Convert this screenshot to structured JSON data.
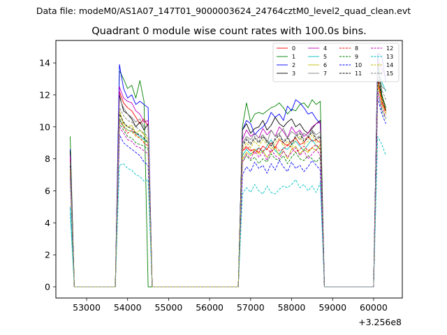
{
  "chart_data": {
    "type": "line",
    "suptitle": "Data file: modeM0/AS1A07_147T01_9000003624_24764cztM0_level2_quad_clean.evt",
    "title": "Quadrant 0 module wise count rates with 100.0s bins.",
    "xlabel": "",
    "ylabel": "",
    "x_offset_label": "+3.256e8",
    "xlim": [
      52250,
      60700
    ],
    "ylim": [
      -0.7,
      15.4
    ],
    "xticks": [
      53000,
      54000,
      55000,
      56000,
      57000,
      58000,
      59000,
      60000
    ],
    "yticks": [
      0,
      2,
      4,
      6,
      8,
      10,
      12,
      14
    ],
    "legend_position": "top-right",
    "legend_columns": 4,
    "segments": [
      {
        "start": 52600,
        "steps": 1
      },
      {
        "start": 53800,
        "steps": 8
      },
      {
        "start": 56800,
        "steps": 20
      },
      {
        "start": 60100,
        "steps": 2
      }
    ],
    "gap_value": 0,
    "series": [
      {
        "name": "0",
        "color": "#ff0000",
        "style": "solid",
        "segments": [
          [
            8.0,
            0
          ],
          [
            12.2,
            11.5,
            11.2,
            11.0,
            10.6,
            10.2,
            10.5,
            10.0,
            0
          ],
          [
            8.5,
            8.7,
            8.5,
            8.6,
            8.4,
            8.8,
            8.6,
            9.0,
            8.7,
            9.2,
            9.0,
            8.8,
            9.1,
            9.3,
            8.9,
            9.0,
            9.4,
            9.1,
            9.2,
            9.0,
            0
          ],
          [
            13.2,
            11.5,
            11.0
          ]
        ]
      },
      {
        "name": "1",
        "color": "#008000",
        "style": "solid",
        "segments": [
          [
            9.4,
            0
          ],
          [
            13.5,
            13.0,
            12.4,
            12.6,
            11.8,
            12.9,
            11.6,
            0,
            0
          ],
          [
            10.0,
            11.5,
            10.3,
            10.8,
            10.9,
            10.8,
            11.0,
            11.2,
            11.3,
            11.5,
            11.2,
            10.8,
            11.1,
            11.0,
            11.4,
            11.5,
            11.2,
            11.7,
            11.4,
            11.6,
            0
          ],
          [
            14.5,
            12.0,
            11.2
          ]
        ]
      },
      {
        "name": "2",
        "color": "#0000ff",
        "style": "solid",
        "segments": [
          [
            8.6,
            0
          ],
          [
            13.9,
            12.4,
            11.8,
            12.0,
            11.4,
            11.6,
            11.4,
            11.2,
            0
          ],
          [
            9.8,
            10.4,
            10.2,
            9.5,
            9.8,
            10.0,
            10.3,
            10.9,
            10.6,
            10.8,
            10.4,
            11.3,
            11.0,
            11.7,
            11.5,
            11.2,
            10.8,
            10.9,
            10.5,
            10.2,
            0
          ],
          [
            14.6,
            14.4,
            12.8
          ]
        ]
      },
      {
        "name": "3",
        "color": "#000000",
        "style": "solid",
        "segments": [
          [
            8.5,
            0
          ],
          [
            12.0,
            11.0,
            10.8,
            10.5,
            10.0,
            10.3,
            9.8,
            10.2,
            0
          ],
          [
            9.8,
            10.2,
            9.6,
            9.9,
            10.0,
            10.4,
            9.8,
            10.1,
            10.6,
            10.2,
            10.0,
            10.3,
            10.5,
            10.0,
            10.2,
            9.8,
            9.6,
            9.9,
            10.2,
            10.4,
            0
          ],
          [
            13.9,
            11.8,
            11.0
          ]
        ]
      },
      {
        "name": "4",
        "color": "#bf00bf",
        "style": "solid",
        "segments": [
          [
            8.2,
            0
          ],
          [
            12.5,
            11.8,
            11.6,
            11.5,
            11.0,
            10.8,
            10.3,
            10.4,
            0
          ],
          [
            9.2,
            9.8,
            9.4,
            9.6,
            9.3,
            9.9,
            9.5,
            9.8,
            9.4,
            10.0,
            9.7,
            9.3,
            10.0,
            9.6,
            9.8,
            9.4,
            9.6,
            10.0,
            10.2,
            10.3,
            0
          ],
          [
            14.2,
            13.6,
            13.2
          ]
        ]
      },
      {
        "name": "5",
        "color": "#00bfbf",
        "style": "solid",
        "segments": [
          [
            5.0,
            0
          ],
          [
            10.5,
            10.0,
            9.8,
            9.7,
            9.6,
            9.4,
            9.2,
            9.0,
            0
          ],
          [
            8.2,
            8.6,
            8.3,
            8.5,
            8.7,
            8.4,
            8.8,
            9.2,
            8.5,
            8.3,
            8.7,
            8.6,
            8.9,
            9.1,
            8.8,
            8.5,
            8.9,
            9.2,
            8.8,
            8.6,
            0
          ],
          [
            13.6,
            12.8,
            12.2
          ]
        ]
      },
      {
        "name": "6",
        "color": "#bfbf00",
        "style": "solid",
        "segments": [
          [
            7.2,
            0
          ],
          [
            11.0,
            10.2,
            10.0,
            10.1,
            9.6,
            9.8,
            9.5,
            9.2,
            0
          ],
          [
            8.0,
            8.4,
            8.2,
            8.6,
            8.3,
            8.5,
            8.1,
            8.4,
            8.7,
            8.2,
            8.5,
            8.0,
            8.6,
            8.8,
            8.3,
            8.6,
            8.4,
            8.7,
            8.5,
            8.9,
            0
          ],
          [
            12.8,
            11.4,
            10.8
          ]
        ]
      },
      {
        "name": "7",
        "color": "#808080",
        "style": "solid",
        "segments": [
          [
            7.8,
            0
          ],
          [
            11.8,
            11.2,
            10.8,
            10.6,
            10.3,
            10.5,
            10.0,
            10.1,
            0
          ],
          [
            9.0,
            9.4,
            9.2,
            9.6,
            9.3,
            9.5,
            9.0,
            9.8,
            9.4,
            9.6,
            9.9,
            9.3,
            9.7,
            9.5,
            9.2,
            9.6,
            9.4,
            9.8,
            9.5,
            9.7,
            0
          ],
          [
            13.6,
            12.5,
            12.3
          ]
        ]
      },
      {
        "name": "8",
        "color": "#ff0000",
        "style": "dashed",
        "segments": [
          [
            7.4,
            0
          ],
          [
            10.4,
            10.0,
            9.6,
            9.8,
            9.5,
            9.3,
            9.0,
            8.8,
            0
          ],
          [
            8.5,
            8.8,
            8.6,
            8.3,
            8.7,
            8.5,
            8.6,
            8.4,
            8.8,
            8.5,
            8.6,
            8.9,
            8.7,
            8.4,
            8.6,
            8.8,
            8.5,
            8.7,
            8.9,
            8.6,
            0
          ],
          [
            12.6,
            11.6,
            10.9
          ]
        ]
      },
      {
        "name": "9",
        "color": "#008000",
        "style": "dashed",
        "segments": [
          [
            7.0,
            0
          ],
          [
            10.2,
            9.8,
            9.4,
            9.3,
            9.0,
            8.9,
            8.8,
            8.6,
            0
          ],
          [
            7.8,
            8.2,
            7.9,
            8.1,
            7.7,
            8.0,
            7.8,
            8.3,
            8.0,
            7.9,
            8.2,
            7.7,
            8.1,
            8.4,
            8.0,
            7.9,
            8.2,
            8.0,
            7.8,
            8.1,
            0
          ],
          [
            12.3,
            11.0,
            10.5
          ]
        ]
      },
      {
        "name": "10",
        "color": "#0000ff",
        "style": "dashed",
        "segments": [
          [
            6.8,
            0
          ],
          [
            9.5,
            9.0,
            8.8,
            8.6,
            8.4,
            8.2,
            7.8,
            7.6,
            0
          ],
          [
            7.0,
            7.5,
            7.2,
            7.8,
            7.4,
            7.6,
            7.1,
            7.7,
            7.3,
            7.9,
            7.5,
            7.2,
            7.8,
            7.4,
            7.6,
            7.2,
            7.5,
            7.9,
            7.6,
            7.3,
            0
          ],
          [
            11.8,
            10.8,
            10.2
          ]
        ]
      },
      {
        "name": "11",
        "color": "#000000",
        "style": "dashed",
        "segments": [
          [
            7.6,
            0
          ],
          [
            10.8,
            10.3,
            10.0,
            9.9,
            9.6,
            9.5,
            9.3,
            9.0,
            0
          ],
          [
            8.8,
            9.2,
            8.9,
            9.3,
            9.0,
            9.4,
            9.1,
            8.8,
            9.2,
            9.5,
            9.0,
            9.3,
            8.9,
            9.4,
            9.6,
            9.1,
            9.3,
            9.7,
            9.2,
            9.4,
            0
          ],
          [
            12.9,
            11.9,
            11.2
          ]
        ]
      },
      {
        "name": "12",
        "color": "#bf00bf",
        "style": "dashed",
        "segments": [
          [
            7.1,
            0
          ],
          [
            10.0,
            9.6,
            9.2,
            9.1,
            8.8,
            8.7,
            8.5,
            8.3,
            0
          ],
          [
            7.8,
            8.3,
            8.0,
            8.5,
            8.1,
            8.4,
            7.9,
            8.6,
            8.2,
            8.0,
            8.5,
            8.1,
            8.4,
            8.7,
            8.2,
            8.5,
            8.0,
            8.3,
            8.6,
            8.2,
            0
          ],
          [
            12.2,
            11.2,
            10.6
          ]
        ]
      },
      {
        "name": "13",
        "color": "#00bfbf",
        "style": "dashed",
        "segments": [
          [
            4.6,
            0
          ],
          [
            7.6,
            7.7,
            7.4,
            7.3,
            7.0,
            6.9,
            6.6,
            6.7,
            0
          ],
          [
            5.8,
            6.2,
            5.9,
            6.4,
            6.0,
            5.8,
            6.3,
            5.9,
            5.8,
            6.1,
            6.3,
            6.2,
            6.4,
            6.7,
            6.2,
            6.4,
            6.0,
            6.3,
            5.9,
            6.5,
            0
          ],
          [
            9.4,
            8.9,
            8.2
          ]
        ]
      },
      {
        "name": "14",
        "color": "#bfbf00",
        "style": "dashed",
        "segments": [
          [
            7.3,
            0
          ],
          [
            10.6,
            10.1,
            9.8,
            9.7,
            9.4,
            9.3,
            9.1,
            9.0,
            0
          ],
          [
            8.6,
            9.0,
            8.7,
            9.1,
            8.8,
            9.2,
            8.9,
            8.6,
            9.0,
            9.3,
            8.8,
            9.1,
            8.7,
            9.2,
            9.4,
            8.9,
            9.1,
            9.5,
            9.0,
            9.2,
            0
          ],
          [
            12.7,
            11.8,
            11.1
          ]
        ]
      },
      {
        "name": "15",
        "color": "#808080",
        "style": "dashed",
        "segments": [
          [
            7.7,
            0
          ],
          [
            11.2,
            10.7,
            10.4,
            10.3,
            10.0,
            9.8,
            9.6,
            9.4,
            0
          ],
          [
            8.9,
            9.3,
            9.0,
            9.4,
            9.1,
            9.5,
            9.2,
            8.9,
            9.3,
            9.6,
            9.1,
            9.4,
            9.0,
            9.5,
            9.7,
            9.2,
            9.4,
            9.8,
            9.3,
            9.5,
            0
          ],
          [
            13.1,
            12.3,
            11.7
          ]
        ]
      }
    ]
  }
}
